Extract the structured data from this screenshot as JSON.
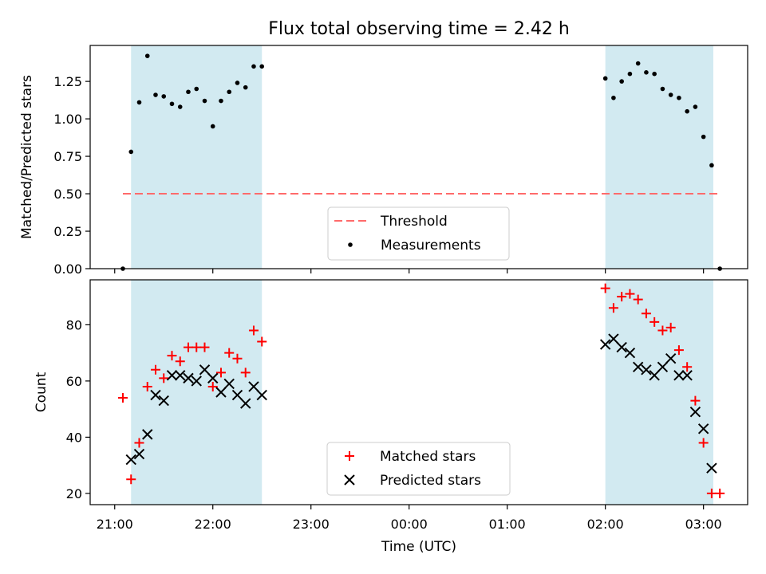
{
  "title": "Flux total observing time = 2.42 h",
  "xlabel": "Time (UTC)",
  "x_ticks": [
    "21:00",
    "22:00",
    "23:00",
    "00:00",
    "01:00",
    "02:00",
    "03:00"
  ],
  "colors": {
    "shade": "#add8e6",
    "threshold": "#ff6b6b",
    "measurement": "#000000",
    "matched": "#ff0000",
    "predicted": "#000000"
  },
  "chart_data": [
    {
      "type": "scatter",
      "ylabel": "Matched/Predicted stars",
      "ylim": [
        0,
        1.49
      ],
      "xlim": [
        "20:45",
        "03:27"
      ],
      "y_ticks": [
        "0.00",
        "0.25",
        "0.50",
        "0.75",
        "1.00",
        "1.25"
      ],
      "shaded_intervals": [
        [
          "21:10",
          "22:30"
        ],
        [
          "02:00",
          "03:06"
        ]
      ],
      "threshold": {
        "name": "Threshold",
        "y": 0.5,
        "x_range": [
          "21:05",
          "03:10"
        ]
      },
      "legend": {
        "placement": "lower center",
        "entries": [
          "Threshold",
          "Measurements"
        ]
      },
      "series": [
        {
          "name": "Measurements",
          "x": [
            "21:05",
            "21:10",
            "21:15",
            "21:20",
            "21:25",
            "21:30",
            "21:35",
            "21:40",
            "21:45",
            "21:50",
            "21:55",
            "22:00",
            "22:05",
            "22:10",
            "22:15",
            "22:20",
            "22:25",
            "22:30",
            "02:00",
            "02:05",
            "02:10",
            "02:15",
            "02:20",
            "02:25",
            "02:30",
            "02:35",
            "02:40",
            "02:45",
            "02:50",
            "02:55",
            "03:00",
            "03:05",
            "03:10"
          ],
          "y": [
            0.0,
            0.78,
            1.11,
            1.42,
            1.16,
            1.15,
            1.1,
            1.08,
            1.18,
            1.2,
            1.12,
            0.95,
            1.12,
            1.18,
            1.24,
            1.21,
            1.35,
            1.35,
            1.27,
            1.14,
            1.25,
            1.3,
            1.37,
            1.31,
            1.3,
            1.2,
            1.16,
            1.14,
            1.05,
            1.08,
            0.88,
            0.69,
            0.0
          ]
        }
      ]
    },
    {
      "type": "scatter",
      "ylabel": "Count",
      "ylim": [
        16,
        96
      ],
      "xlim": [
        "20:45",
        "03:27"
      ],
      "y_ticks": [
        "20",
        "40",
        "60",
        "80"
      ],
      "shaded_intervals": [
        [
          "21:10",
          "22:30"
        ],
        [
          "02:00",
          "03:06"
        ]
      ],
      "legend": {
        "placement": "lower center",
        "entries": [
          "Matched stars",
          "Predicted stars"
        ]
      },
      "series": [
        {
          "name": "Matched stars",
          "marker": "+",
          "x": [
            "21:05",
            "21:10",
            "21:15",
            "21:20",
            "21:25",
            "21:30",
            "21:35",
            "21:40",
            "21:45",
            "21:50",
            "21:55",
            "22:00",
            "22:05",
            "22:10",
            "22:15",
            "22:20",
            "22:25",
            "22:30",
            "02:00",
            "02:05",
            "02:10",
            "02:15",
            "02:20",
            "02:25",
            "02:30",
            "02:35",
            "02:40",
            "02:45",
            "02:50",
            "02:55",
            "03:00",
            "03:05",
            "03:10"
          ],
          "y": [
            54,
            25,
            38,
            58,
            64,
            61,
            69,
            67,
            72,
            72,
            72,
            58,
            63,
            70,
            68,
            63,
            78,
            74,
            93,
            86,
            90,
            91,
            89,
            84,
            81,
            78,
            79,
            71,
            65,
            53,
            38,
            20,
            20
          ]
        },
        {
          "name": "Predicted stars",
          "marker": "x",
          "x": [
            "21:10",
            "21:15",
            "21:20",
            "21:25",
            "21:30",
            "21:35",
            "21:40",
            "21:45",
            "21:50",
            "21:55",
            "22:00",
            "22:05",
            "22:10",
            "22:15",
            "22:20",
            "22:25",
            "22:30",
            "02:00",
            "02:05",
            "02:10",
            "02:15",
            "02:20",
            "02:25",
            "02:30",
            "02:35",
            "02:40",
            "02:45",
            "02:50",
            "02:55",
            "03:00",
            "03:05"
          ],
          "y": [
            32,
            34,
            41,
            55,
            53,
            62,
            62,
            61,
            60,
            64,
            61,
            56,
            59,
            55,
            52,
            58,
            55,
            73,
            75,
            72,
            70,
            65,
            64,
            62,
            65,
            68,
            62,
            62,
            49,
            43,
            29
          ]
        }
      ]
    }
  ]
}
